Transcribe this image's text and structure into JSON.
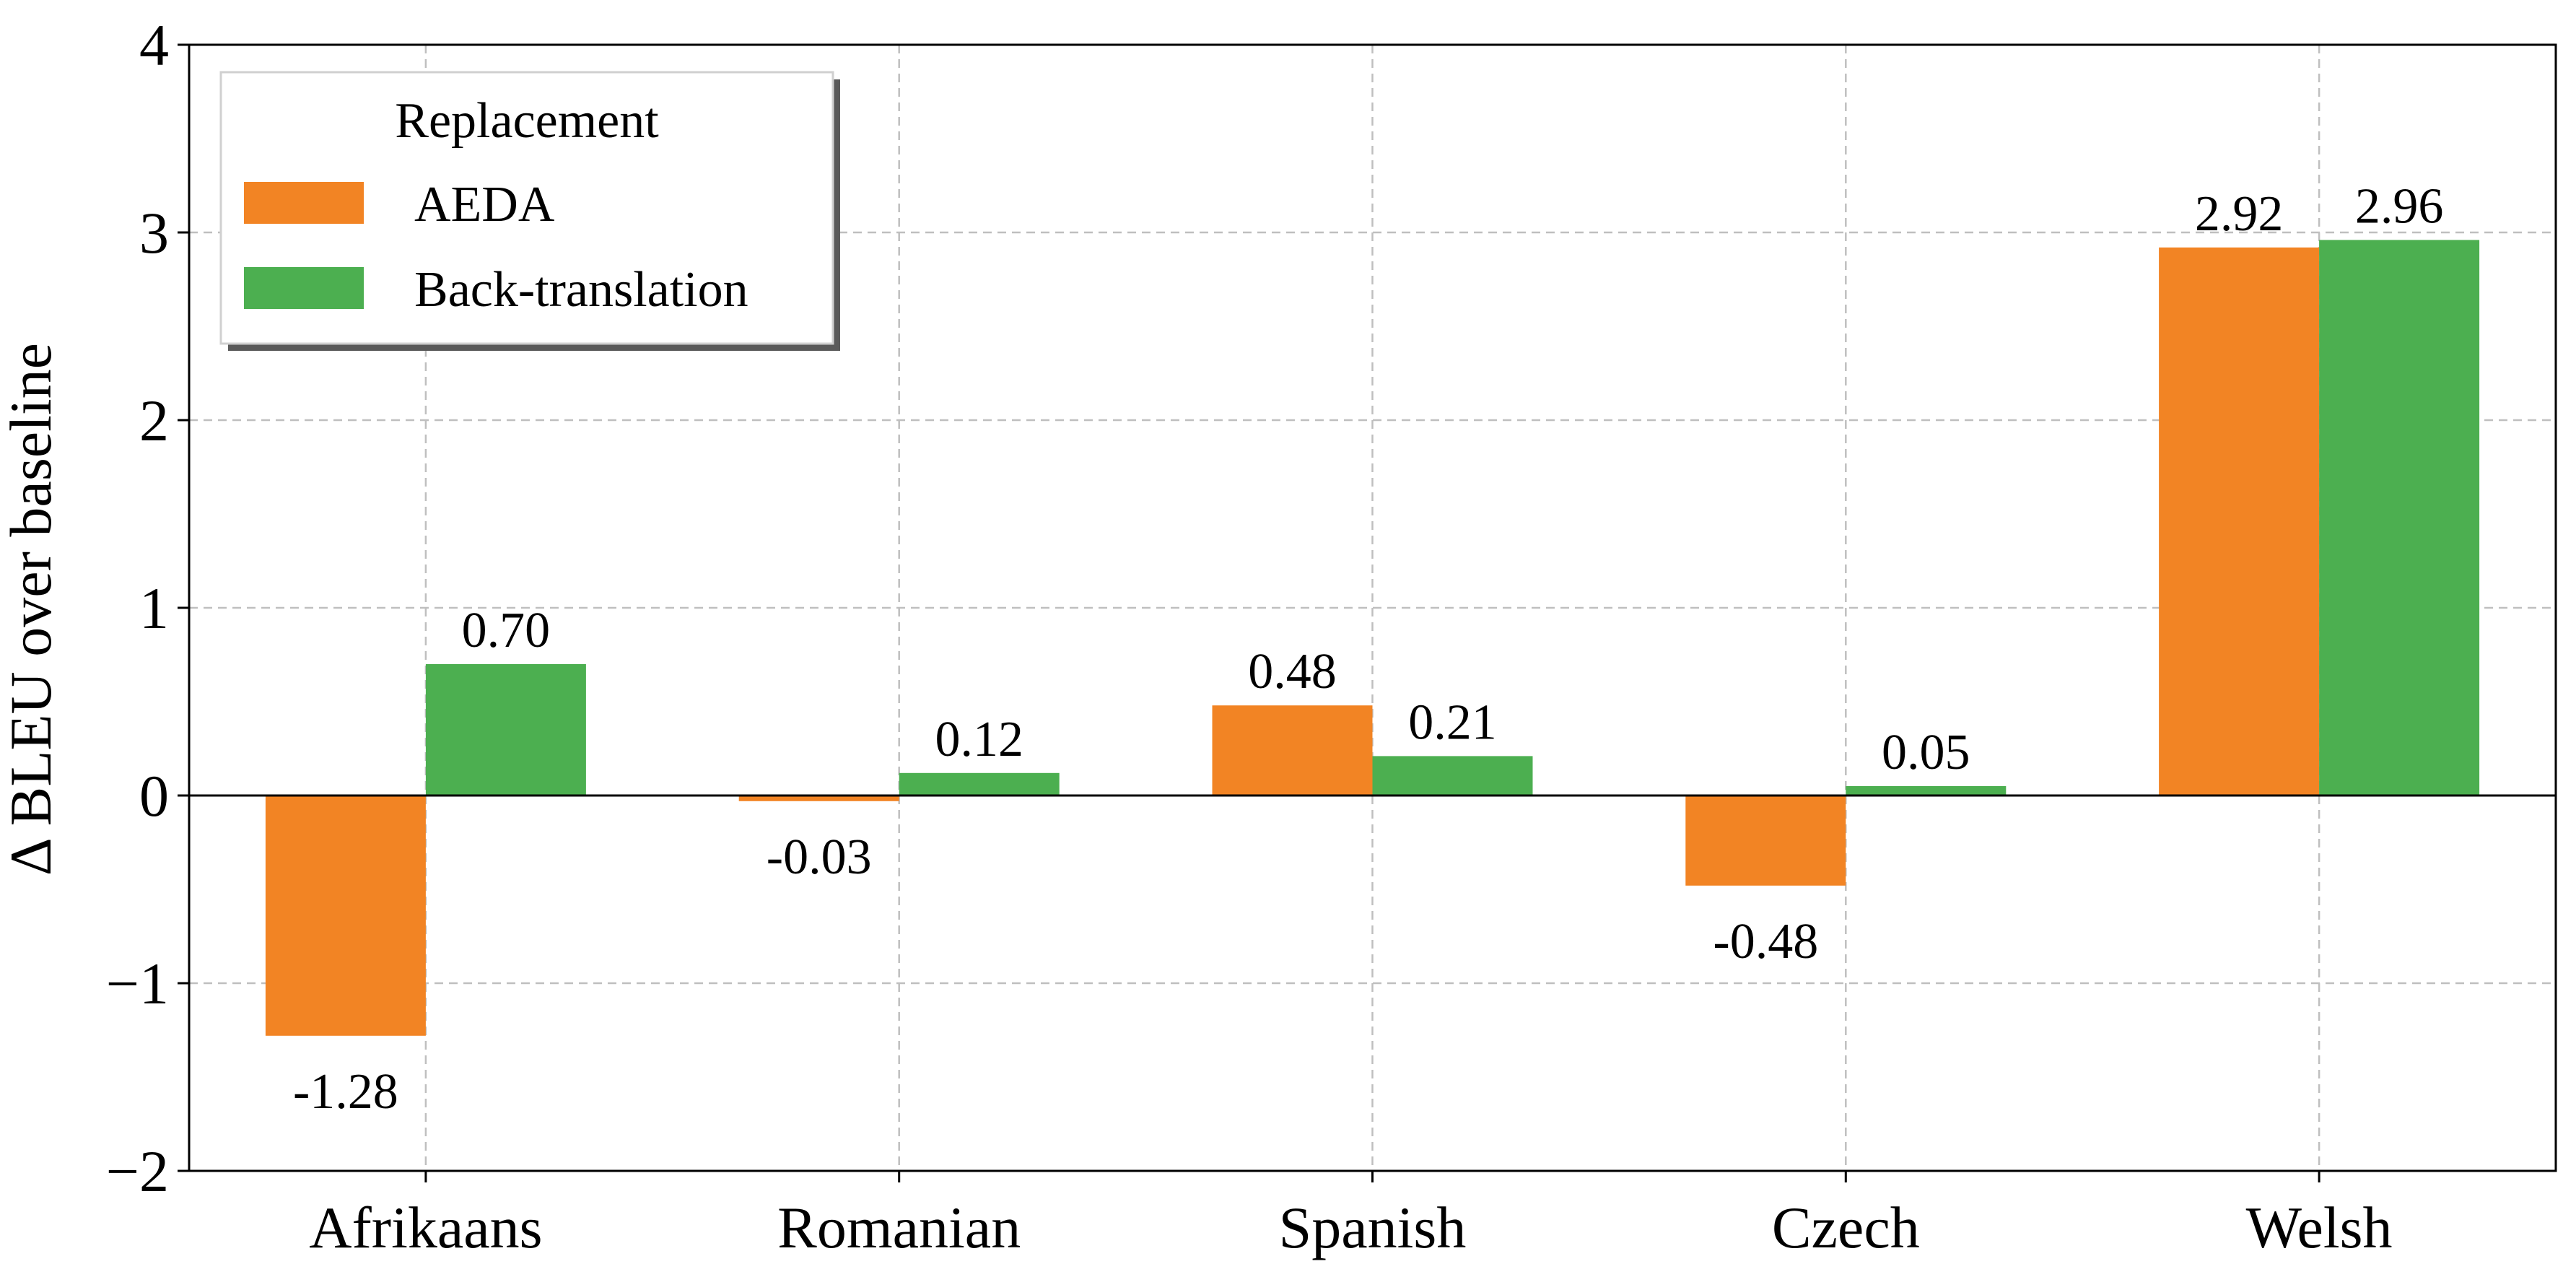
{
  "chart_data": {
    "type": "bar",
    "categories": [
      "Afrikaans",
      "Romanian",
      "Spanish",
      "Czech",
      "Welsh"
    ],
    "series": [
      {
        "name": "AEDA",
        "color": "#f28424",
        "values": [
          -1.28,
          -0.03,
          0.48,
          -0.48,
          2.92
        ]
      },
      {
        "name": "Back-translation",
        "color": "#4caf50",
        "values": [
          0.7,
          0.12,
          0.21,
          0.05,
          2.96
        ]
      }
    ],
    "value_labels": [
      [
        "-1.28",
        "-0.03",
        "0.48",
        "-0.48",
        "2.92"
      ],
      [
        "0.70",
        "0.12",
        "0.21",
        "0.05",
        "2.96"
      ]
    ],
    "title": "",
    "xlabel": "",
    "ylabel": "Δ BLEU over baseline",
    "ylim": [
      -2,
      4
    ],
    "yticks": [
      -2,
      -1,
      0,
      1,
      2,
      3,
      4
    ],
    "ytick_labels": [
      "−2",
      "−1",
      "0",
      "1",
      "2",
      "3",
      "4"
    ],
    "grid": true,
    "legend": {
      "title": "Replacement",
      "placement": "top-left"
    }
  }
}
